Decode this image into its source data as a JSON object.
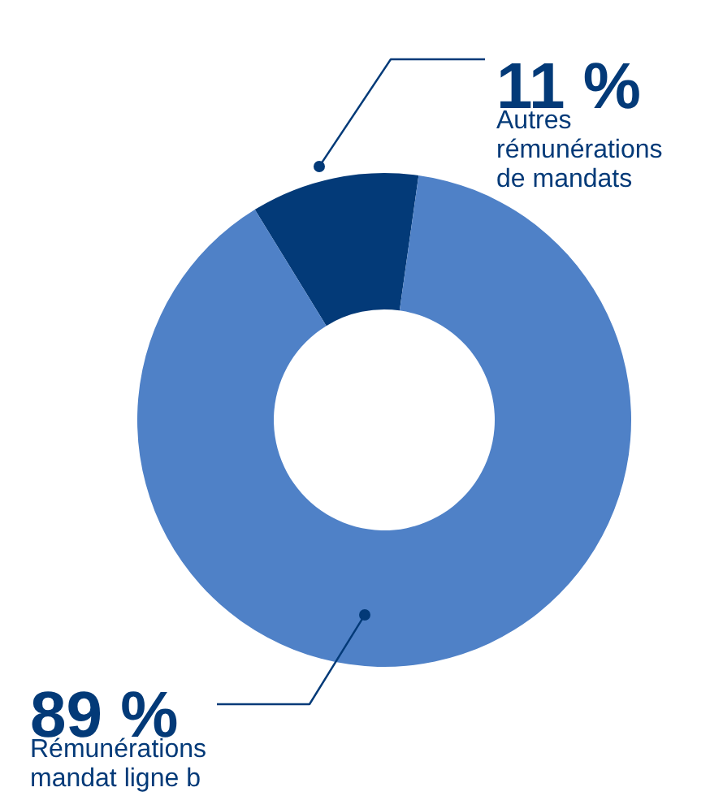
{
  "chart_data": {
    "type": "donut",
    "categories": [
      "Rémunérations mandat ligne b",
      "Autres rémunérations de mandats"
    ],
    "values": [
      89,
      11
    ],
    "colors": [
      "#4f81c7",
      "#033a78"
    ],
    "value_labels": [
      "89 %",
      "11 %"
    ],
    "legend": false
  }
}
